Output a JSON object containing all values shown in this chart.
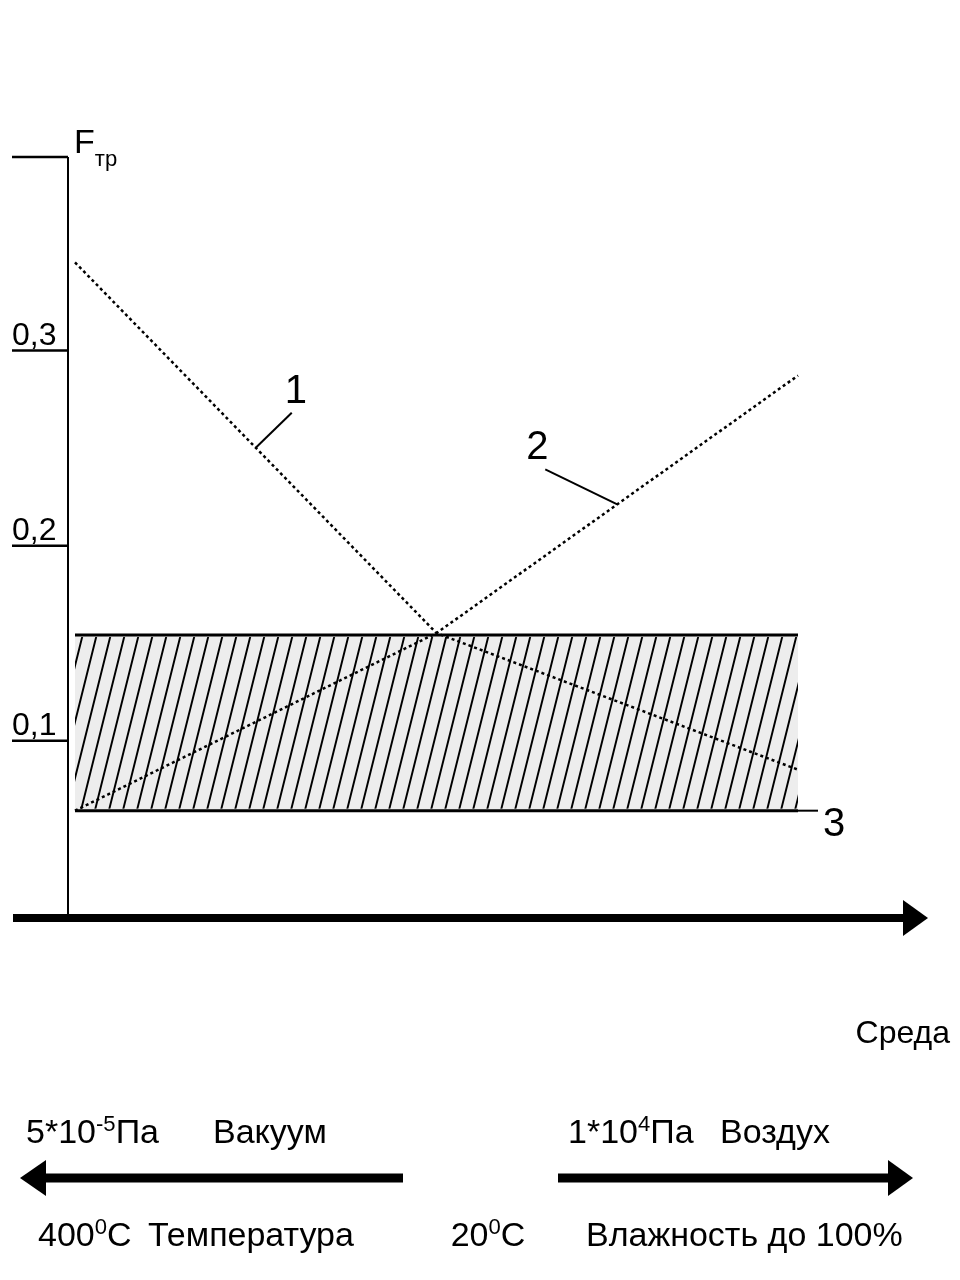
{
  "chart_data": {
    "type": "line",
    "xlabel": "Среда",
    "ylabel": "F$_{тр}$",
    "categories": [
      null,
      null,
      null
    ],
    "series": [
      {
        "name": "1",
        "color": "#000000",
        "values": [
          0.336,
          0.146,
          0.076
        ]
      },
      {
        "name": "2",
        "color": "#000000",
        "values": [
          0.055,
          0.146,
          0.278
        ]
      }
    ],
    "ylim": [
      0,
      0.39
    ],
    "yticks": [
      {
        "value": 0.1,
        "label": "0,1"
      },
      {
        "value": 0.2,
        "label": "0,2"
      },
      {
        "value": 0.3,
        "label": "0,3"
      }
    ],
    "bands": [
      {
        "axis": "y",
        "from": 0.055,
        "to": 0.145,
        "label": "3"
      }
    ],
    "marker": "none",
    "line_style": "dotted",
    "annotations": [
      "5*10$^{-5}$Па",
      "Вакуум",
      "1*10$^{4}$Па",
      "Воздух",
      "400$^{0}$C",
      "Температура",
      "20$^{0}$C",
      "Влажность до 100%"
    ]
  }
}
